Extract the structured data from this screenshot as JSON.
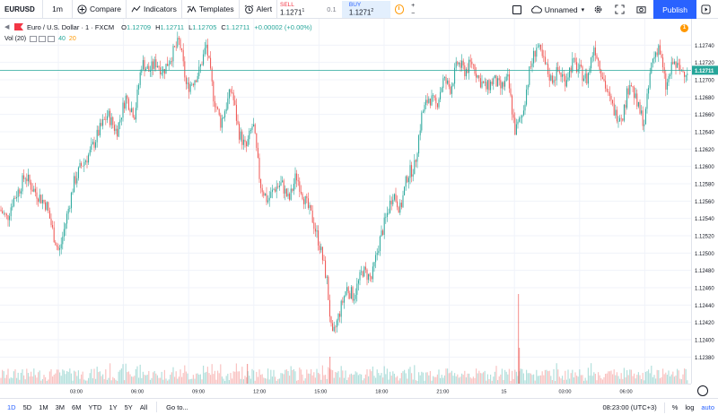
{
  "toolbar": {
    "symbol": "EURUSD",
    "interval": "1m",
    "compare_label": "Compare",
    "indicators_label": "Indicators",
    "templates_label": "Templates",
    "alert_label": "Alert",
    "sell_label": "SELL",
    "sell_price": "1.1271",
    "sell_price_sup": "1",
    "spread": "0.1",
    "buy_label": "BUY",
    "buy_price": "1.1271",
    "buy_price_sup": "2",
    "qty_up": "+",
    "qty_down": "−",
    "layout_name": "Unnamed",
    "publish_label": "Publish"
  },
  "legend": {
    "symbol_name": "Euro / U.S. Dollar",
    "interval": "1",
    "exchange": "FXCM",
    "open_key": "O",
    "open": "1.12709",
    "high_key": "H",
    "high": "1.12711",
    "low_key": "L",
    "low": "1.12705",
    "close_key": "C",
    "close": "1.12711",
    "change": "+0.00002 (+0.00%)",
    "vol_label": "Vol (20)",
    "vol_value": "40",
    "vol_ma": "20"
  },
  "alert_count": "1",
  "bottombar": {
    "ranges": [
      "1D",
      "5D",
      "1M",
      "3M",
      "6M",
      "YTD",
      "1Y",
      "5Y",
      "All"
    ],
    "goto_label": "Go to...",
    "clock": "08:23:00 (UTC+3)",
    "percent": "%",
    "log": "log",
    "auto": "auto"
  },
  "colors": {
    "up": "#26a69a",
    "down": "#ef5350",
    "accent": "#2962ff",
    "last_price": "#26a69a"
  },
  "chart_data": {
    "type": "candlestick",
    "symbol": "EURUSD",
    "interval": "1m",
    "ylim": [
      1.1237,
      1.1276
    ],
    "y_ticks": [
      "1.12740",
      "1.12720",
      "1.12700",
      "1.12680",
      "1.12660",
      "1.12640",
      "1.12620",
      "1.12600",
      "1.12580",
      "1.12560",
      "1.12540",
      "1.12520",
      "1.12500",
      "1.12480",
      "1.12460",
      "1.12440",
      "1.12420",
      "1.12400",
      "1.12380"
    ],
    "x_ticks": [
      "03:00",
      "06:00",
      "09:00",
      "12:00",
      "15:00",
      "18:00",
      "21:00",
      "15",
      "03:00",
      "06:00"
    ],
    "last_price": "1.12711",
    "price_path": [
      [
        0,
        1.1255
      ],
      [
        8,
        1.1254
      ],
      [
        14,
        1.1256
      ],
      [
        22,
        1.12575
      ],
      [
        28,
        1.1259
      ],
      [
        36,
        1.12575
      ],
      [
        44,
        1.12565
      ],
      [
        52,
        1.12555
      ],
      [
        60,
        1.1252
      ],
      [
        66,
        1.125
      ],
      [
        74,
        1.1254
      ],
      [
        82,
        1.1258
      ],
      [
        90,
        1.126
      ],
      [
        100,
        1.12615
      ],
      [
        110,
        1.1264
      ],
      [
        120,
        1.1266
      ],
      [
        130,
        1.1264
      ],
      [
        140,
        1.1268
      ],
      [
        150,
        1.1266
      ],
      [
        158,
        1.1272
      ],
      [
        166,
        1.1271
      ],
      [
        174,
        1.1272
      ],
      [
        182,
        1.1271
      ],
      [
        192,
        1.1273
      ],
      [
        200,
        1.12745
      ],
      [
        208,
        1.1269
      ],
      [
        216,
        1.127
      ],
      [
        222,
        1.1271
      ],
      [
        230,
        1.1274
      ],
      [
        238,
        1.1268
      ],
      [
        246,
        1.1265
      ],
      [
        252,
        1.1267
      ],
      [
        258,
        1.1269
      ],
      [
        266,
        1.1264
      ],
      [
        274,
        1.1262
      ],
      [
        282,
        1.1265
      ],
      [
        290,
        1.1258
      ],
      [
        298,
        1.1256
      ],
      [
        306,
        1.12575
      ],
      [
        314,
        1.1258
      ],
      [
        322,
        1.1256
      ],
      [
        330,
        1.1259
      ],
      [
        340,
        1.1256
      ],
      [
        348,
        1.1254
      ],
      [
        356,
        1.1251
      ],
      [
        364,
        1.1247
      ],
      [
        370,
        1.124
      ],
      [
        378,
        1.1243
      ],
      [
        386,
        1.1246
      ],
      [
        394,
        1.1245
      ],
      [
        404,
        1.1248
      ],
      [
        414,
        1.1247
      ],
      [
        422,
        1.1251
      ],
      [
        430,
        1.1254
      ],
      [
        438,
        1.1257
      ],
      [
        446,
        1.1255
      ],
      [
        454,
        1.1259
      ],
      [
        462,
        1.126
      ],
      [
        470,
        1.1266
      ],
      [
        478,
        1.1268
      ],
      [
        486,
        1.1267
      ],
      [
        494,
        1.127
      ],
      [
        502,
        1.1269
      ],
      [
        510,
        1.1272
      ],
      [
        518,
        1.1271
      ],
      [
        526,
        1.1272
      ],
      [
        534,
        1.127
      ],
      [
        542,
        1.1269
      ],
      [
        550,
        1.127
      ],
      [
        558,
        1.1269
      ],
      [
        566,
        1.127
      ],
      [
        574,
        1.1264
      ],
      [
        582,
        1.1266
      ],
      [
        590,
        1.1271
      ],
      [
        598,
        1.1274
      ],
      [
        606,
        1.1272
      ],
      [
        614,
        1.127
      ],
      [
        622,
        1.1271
      ],
      [
        630,
        1.127
      ],
      [
        638,
        1.1272
      ],
      [
        646,
        1.1271
      ],
      [
        654,
        1.127
      ],
      [
        662,
        1.1274
      ],
      [
        670,
        1.1271
      ],
      [
        678,
        1.1268
      ],
      [
        686,
        1.1266
      ],
      [
        694,
        1.1266
      ],
      [
        702,
        1.127
      ],
      [
        710,
        1.1267
      ],
      [
        718,
        1.1265
      ],
      [
        726,
        1.1272
      ],
      [
        734,
        1.1274
      ],
      [
        742,
        1.1269
      ],
      [
        750,
        1.1272
      ],
      [
        758,
        1.1271
      ],
      [
        765,
        1.12711
      ]
    ]
  }
}
